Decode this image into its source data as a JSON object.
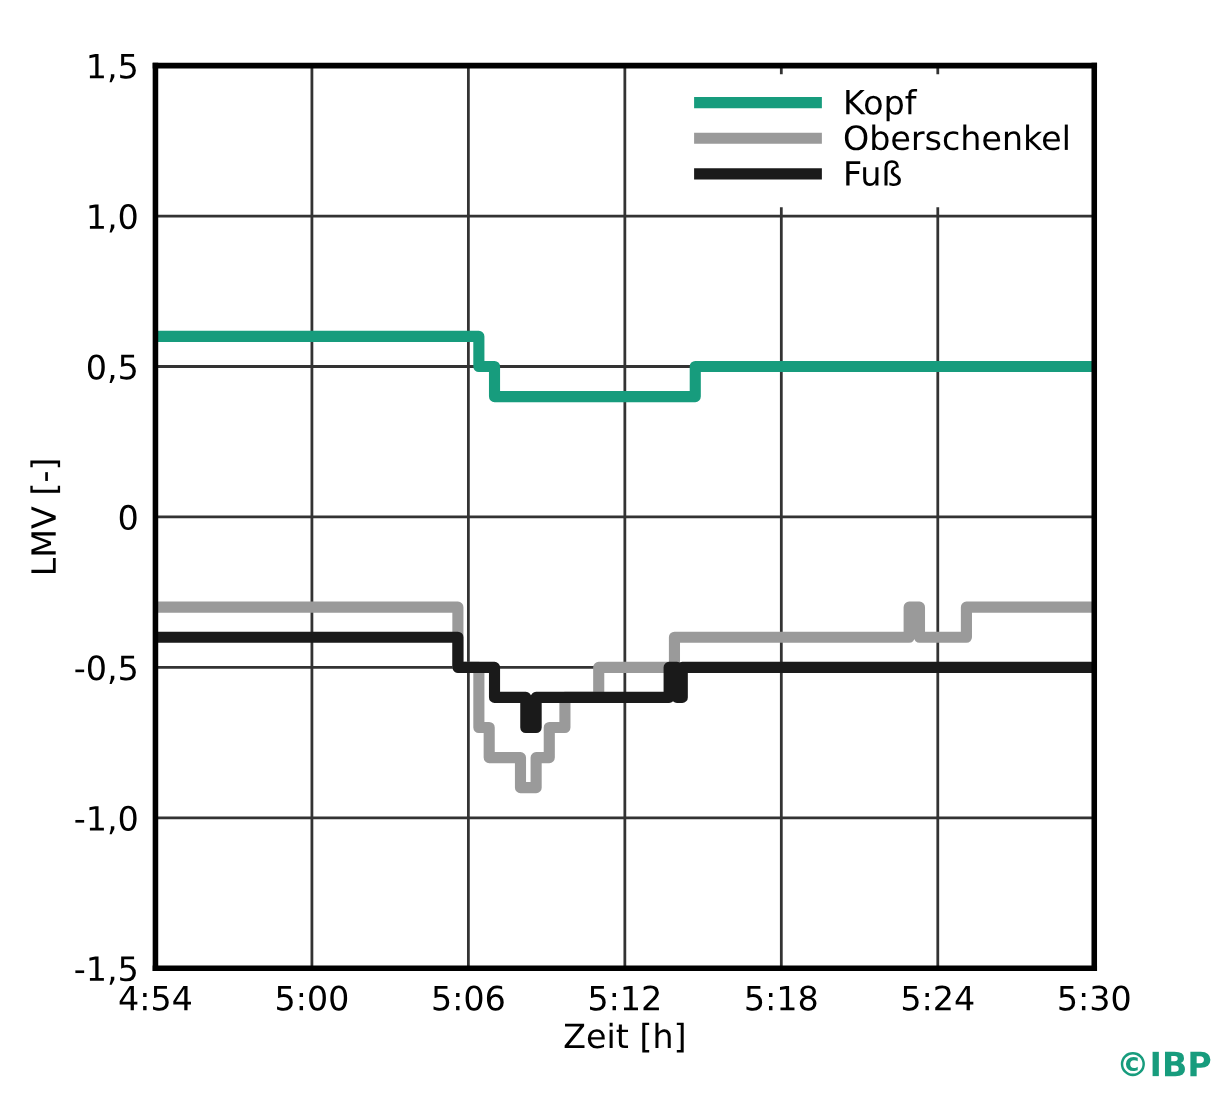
{
  "chart_data": {
    "type": "step",
    "xlabel": "Zeit [h]",
    "ylabel": "LMV [-]",
    "xlim": [
      4.9,
      5.5
    ],
    "xticks": [
      {
        "value": 4.9,
        "label": "4:54"
      },
      {
        "value": 5.0,
        "label": "5:00"
      },
      {
        "value": 5.1,
        "label": "5:06"
      },
      {
        "value": 5.2,
        "label": "5:12"
      },
      {
        "value": 5.3,
        "label": "5:18"
      },
      {
        "value": 5.4,
        "label": "5:24"
      },
      {
        "value": 5.5,
        "label": "5:30"
      }
    ],
    "ylim": [
      -1.5,
      1.5
    ],
    "yticks": [
      {
        "value": -1.5,
        "label": "-1,5"
      },
      {
        "value": -1.0,
        "label": "-1,0"
      },
      {
        "value": -0.5,
        "label": "-0,5"
      },
      0,
      {
        "value": 0.5,
        "label": "0,5"
      },
      {
        "value": 1.0,
        "label": "1,0"
      },
      {
        "value": 1.5,
        "label": "1,5"
      }
    ],
    "grid": true,
    "legend": "top right",
    "annotations": [
      "©IBP"
    ],
    "series": [
      {
        "name": "Kopf",
        "color": "#179c7d",
        "x": [
          4.9,
          5.1067,
          5.1167,
          5.245,
          5.5
        ],
        "values": [
          0.6,
          0.5,
          0.4,
          0.5,
          0.5
        ]
      },
      {
        "name": "Oberschenkel",
        "color": "#9a9a9a",
        "x": [
          4.9,
          5.0933,
          5.1067,
          5.1133,
          5.1333,
          5.1433,
          5.1517,
          5.1617,
          5.1833,
          5.2317,
          5.3817,
          5.3883,
          5.4183,
          5.5
        ],
        "values": [
          -0.3,
          -0.5,
          -0.7,
          -0.8,
          -0.9,
          -0.8,
          -0.7,
          -0.6,
          -0.5,
          -0.4,
          -0.3,
          -0.4,
          -0.3,
          -0.3
        ]
      },
      {
        "name": "Fuß",
        "color": "#1a1a1a",
        "x": [
          4.9,
          5.0933,
          5.1167,
          5.1367,
          5.1433,
          5.2283,
          5.2333,
          5.2367,
          5.5
        ],
        "values": [
          -0.4,
          -0.5,
          -0.6,
          -0.7,
          -0.6,
          -0.5,
          -0.6,
          -0.5,
          -0.5
        ]
      }
    ]
  }
}
